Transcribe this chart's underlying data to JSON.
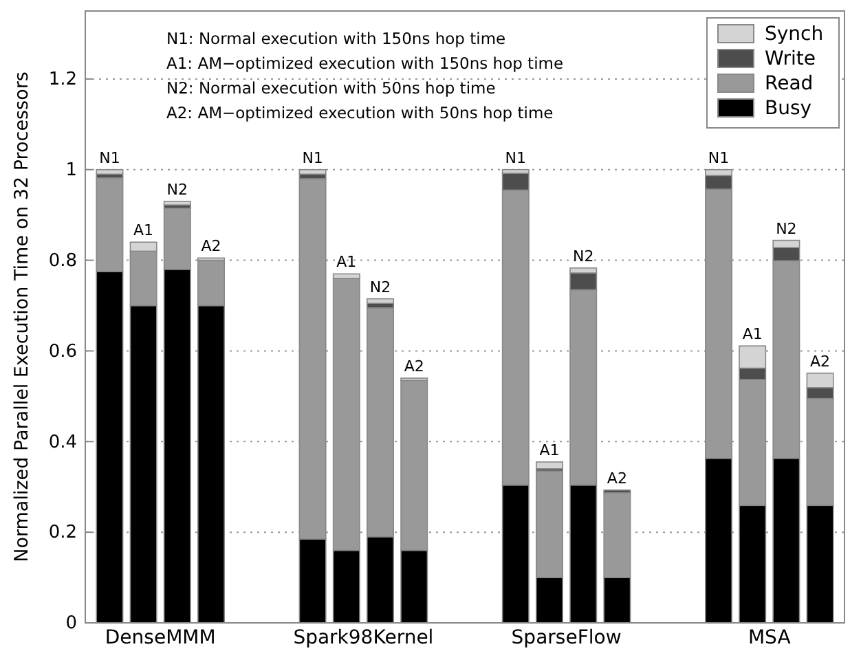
{
  "chart_data": {
    "type": "bar",
    "stacked": true,
    "ylabel": "Normalized Parallel Execution Time on 32 Processors",
    "categories": [
      "N1",
      "A1",
      "N2",
      "A2",
      null,
      null,
      "N1",
      "A1",
      "N2",
      "A2",
      null,
      null,
      "N1",
      "A1",
      "N2",
      "A2",
      null,
      null,
      "N1",
      "A1",
      "N2",
      "A2"
    ],
    "series": [
      {
        "name": "Busy",
        "color": "#000000",
        "values": [
          0.775,
          0.7,
          0.78,
          0.7,
          null,
          null,
          0.185,
          0.16,
          0.19,
          0.16,
          null,
          null,
          0.304,
          0.1,
          0.304,
          0.1,
          null,
          null,
          0.363,
          0.259,
          0.363,
          0.259
        ]
      },
      {
        "name": "Read",
        "color": "#999999",
        "values": [
          0.207,
          0.12,
          0.135,
          0.1,
          null,
          null,
          0.795,
          0.6,
          0.505,
          0.375,
          null,
          null,
          0.651,
          0.235,
          0.431,
          0.187,
          null,
          null,
          0.594,
          0.278,
          0.436,
          0.236
        ]
      },
      {
        "name": "Write",
        "color": "#4d4d4d",
        "values": [
          0.008,
          0,
          0.007,
          0,
          null,
          null,
          0.01,
          0,
          0.01,
          0,
          null,
          null,
          0.037,
          0.005,
          0.037,
          0.006,
          null,
          null,
          0.03,
          0.025,
          0.029,
          0.024
        ]
      },
      {
        "name": "Synch",
        "color": "#d4d4d4",
        "values": [
          0.01,
          0.02,
          0.008,
          0.005,
          null,
          null,
          0.01,
          0.01,
          0.01,
          0.005,
          null,
          null,
          0.008,
          0.015,
          0.011,
          0,
          null,
          null,
          0.013,
          0.049,
          0.016,
          0.032
        ]
      }
    ],
    "ylim": [
      0,
      1.35
    ],
    "yticks": [
      0,
      0.2,
      0.4,
      0.6,
      0.8,
      1,
      1.2
    ],
    "grid": "y",
    "legend": "top right",
    "annotations": [
      "N1: Normal execution with 150ns hop time",
      "A1: AM−optimized execution with 150ns hop time",
      "N2: Normal execution with 50ns hop time",
      "A2: AM−optimized execution with 50ns hop time",
      "DenseMMM",
      "Spark98Kernel",
      "SparseFlow",
      "MSA"
    ]
  }
}
